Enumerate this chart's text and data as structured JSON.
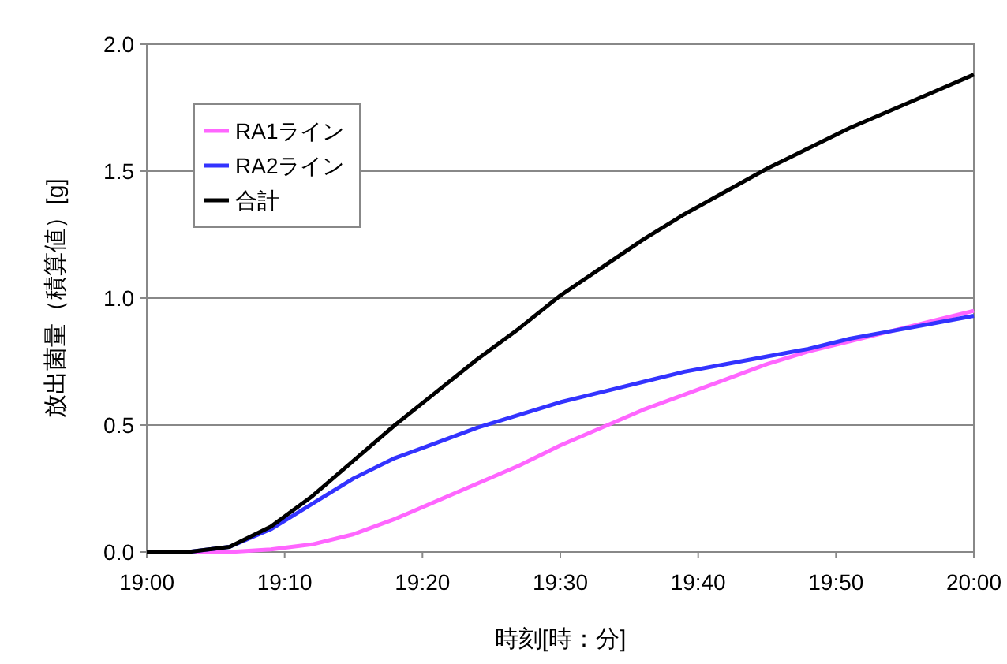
{
  "chart_data": {
    "type": "line",
    "xlabel": "時刻[時：分]",
    "ylabel": "放出菌量（積算値）[g]",
    "x": [
      19.0,
      19.05,
      19.1,
      19.15,
      19.2,
      19.25,
      19.3,
      19.35,
      19.4,
      19.45,
      19.5,
      19.55,
      19.6,
      19.65,
      19.7,
      19.75,
      19.8,
      19.85,
      19.9,
      19.95,
      20.0
    ],
    "series": [
      {
        "name": "RA1ライン",
        "color": "#ff66ff",
        "values": [
          0,
          0,
          0,
          0.01,
          0.03,
          0.07,
          0.13,
          0.2,
          0.27,
          0.34,
          0.42,
          0.49,
          0.56,
          0.62,
          0.68,
          0.74,
          0.79,
          0.83,
          0.87,
          0.91,
          0.95
        ]
      },
      {
        "name": "RA2ライン",
        "color": "#3333ff",
        "values": [
          0,
          0,
          0.02,
          0.09,
          0.19,
          0.29,
          0.37,
          0.43,
          0.49,
          0.54,
          0.59,
          0.63,
          0.67,
          0.71,
          0.74,
          0.77,
          0.8,
          0.84,
          0.87,
          0.9,
          0.93
        ]
      },
      {
        "name": "合計",
        "color": "#000000",
        "values": [
          0,
          0,
          0.02,
          0.1,
          0.22,
          0.36,
          0.5,
          0.63,
          0.76,
          0.88,
          1.01,
          1.12,
          1.23,
          1.33,
          1.42,
          1.51,
          1.59,
          1.67,
          1.74,
          1.81,
          1.88
        ]
      }
    ],
    "xlim": [
      19.0,
      20.0
    ],
    "xticks": [
      {
        "value": 19.0,
        "label": "19:00"
      },
      {
        "value": 19.1667,
        "label": "19:10"
      },
      {
        "value": 19.3333,
        "label": "19:20"
      },
      {
        "value": 19.5,
        "label": "19:30"
      },
      {
        "value": 19.6667,
        "label": "19:40"
      },
      {
        "value": 19.8333,
        "label": "19:50"
      },
      {
        "value": 20.0,
        "label": "20:00"
      }
    ],
    "ylim": [
      0,
      2.0
    ],
    "yticks": [
      {
        "value": 0,
        "label": "0.0"
      },
      {
        "value": 0.5,
        "label": "0.5"
      },
      {
        "value": 1.0,
        "label": "1.0"
      },
      {
        "value": 1.5,
        "label": "1.5"
      },
      {
        "value": 2.0,
        "label": "2.0"
      }
    ],
    "grid": "y",
    "legend": "top left",
    "marker": "none",
    "line_style": "solid"
  }
}
